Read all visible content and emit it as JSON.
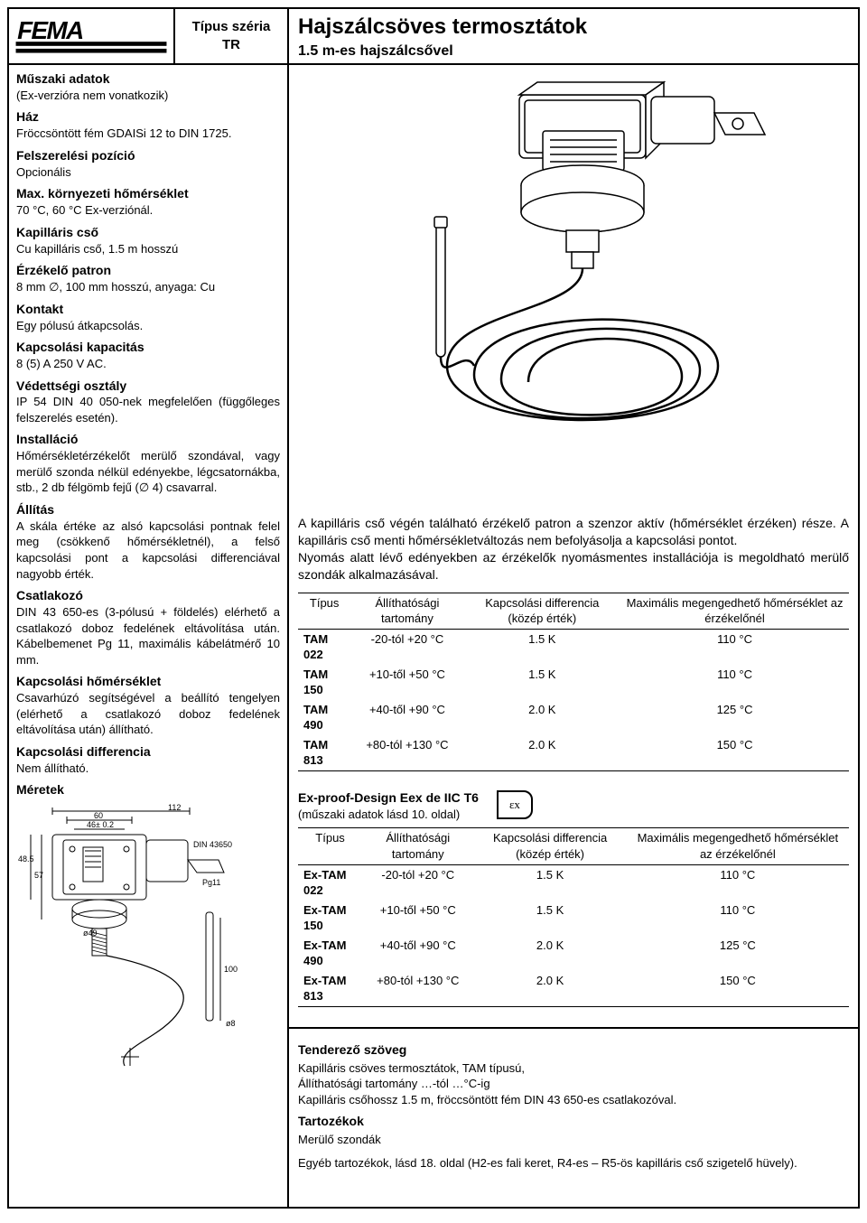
{
  "header": {
    "type_label_1": "Típus széria",
    "type_label_2": "TR",
    "title": "Hajszálcsöves termosztátok",
    "subtitle": "1.5 m-es hajszálcsővel"
  },
  "left_specs": [
    {
      "h": "Műszaki adatok",
      "t": "(Ex-verzióra nem vonatkozik)"
    },
    {
      "h": "Ház",
      "t": "Fröccsöntött fém GDAISi 12 to DIN 1725."
    },
    {
      "h": "Felszerelési pozíció",
      "t": "Opcionális"
    },
    {
      "h": "Max. környezeti hőmérséklet",
      "t": "70 °C, 60 °C Ex-verziónál."
    },
    {
      "h": "Kapilláris cső",
      "t": "Cu kapilláris cső, 1.5 m hosszú"
    },
    {
      "h": "Érzékelő patron",
      "t": "8 mm ∅, 100 mm hosszú, anyaga: Cu"
    },
    {
      "h": "Kontakt",
      "t": "Egy pólusú átkapcsolás."
    },
    {
      "h": "Kapcsolási kapacitás",
      "t": "8 (5) A 250 V AC."
    },
    {
      "h": "Védettségi osztály",
      "t": "IP 54 DIN 40 050-nek megfelelően (függőleges felszerelés esetén)."
    },
    {
      "h": "Installáció",
      "t": "Hőmérsékletérzékelőt merülő szondával, vagy merülő szonda nélkül edényekbe, légcsatornákba, stb., 2 db félgömb fejű (∅ 4) csavarral."
    },
    {
      "h": "Állítás",
      "t": "A skála értéke az alsó kapcsolási pontnak felel meg (csökkenő hőmérsékletnél), a felső kapcsolási pont a kapcsolási differenciával nagyobb érték."
    },
    {
      "h": "Csatlakozó",
      "t": "DIN 43 650-es (3-pólusú + földelés) elérhető a csatlakozó doboz fedelének eltávolítása után. Kábelbemenet Pg 11, maximális kábelátmérő 10 mm."
    },
    {
      "h": "Kapcsolási hőmérséklet",
      "t": "Csavarhúzó segítségével a beállító tengelyen (elérhető a csatlakozó doboz fedelének eltávolítása után) állítható."
    },
    {
      "h": "Kapcsolási differencia",
      "t": "Nem állítható."
    },
    {
      "h": "Méretek",
      "t": ""
    }
  ],
  "intro_p1": "A kapilláris cső végén található érzékelő patron a szenzor aktív (hőmérséklet érzéken) része. A kapilláris cső menti hőmérsékletváltozás nem befolyásolja a kapcsolási pontot.",
  "intro_p2": "Nyomás alatt lévő edényekben az érzékelők nyomásmentes installációja is megoldható merülő szondák alkalmazásával.",
  "table_headers": {
    "c1": "Típus",
    "c2": "Állíthatósági tartomány",
    "c3": "Kapcsolási differencia (közép érték)",
    "c4": "Maximális megengedhető hőmérséklet az érzékelőnél"
  },
  "table1_rows": [
    [
      "TAM 022",
      "-20-tól +20 °C",
      "1.5 K",
      "110 °C"
    ],
    [
      "TAM 150",
      "+10-től +50 °C",
      "1.5 K",
      "110 °C"
    ],
    [
      "TAM 490",
      "+40-től +90 °C",
      "2.0 K",
      "125 °C"
    ],
    [
      "TAM 813",
      "+80-tól +130 °C",
      "2.0 K",
      "150 °C"
    ]
  ],
  "ex_heading": "Ex-proof-Design Eex de IIC T6",
  "ex_sub": "(műszaki adatok lásd 10. oldal)",
  "ex_symbol": "εx",
  "table2_rows": [
    [
      "Ex-TAM 022",
      "-20-tól +20 °C",
      "1.5 K",
      "110 °C"
    ],
    [
      "Ex-TAM 150",
      "+10-től +50 °C",
      "1.5 K",
      "110 °C"
    ],
    [
      "Ex-TAM 490",
      "+40-től +90 °C",
      "2.0 K",
      "125 °C"
    ],
    [
      "Ex-TAM 813",
      "+80-tól +130 °C",
      "2.0 K",
      "150 °C"
    ]
  ],
  "tender": {
    "heading": "Tenderező szöveg",
    "l1": "Kapilláris csöves termosztátok, TAM típusú,",
    "l2": "Állíthatósági tartomány …-tól …°C-ig",
    "l3": "Kapilláris csőhossz 1.5 m, fröccsöntött fém DIN 43 650-es csatlakozóval.",
    "acc_h": "Tartozékok",
    "acc_t": "Merülő szondák",
    "other": "Egyéb tartozékok, lásd 18. oldal (H2-es fali keret, R4-es – R5-ös kapilláris cső szigetelő hüvely)."
  },
  "colors": {
    "border": "#000000",
    "bg": "#ffffff",
    "text": "#000000"
  },
  "dims_labels": {
    "w112": "112",
    "w60": "60",
    "w46": "46± 0.2",
    "din": "DIN 43650",
    "h48": "48.5",
    "h57": "57",
    "d49": "ø49",
    "pg11": "Pg11",
    "l100": "100",
    "d8": "ø8"
  }
}
